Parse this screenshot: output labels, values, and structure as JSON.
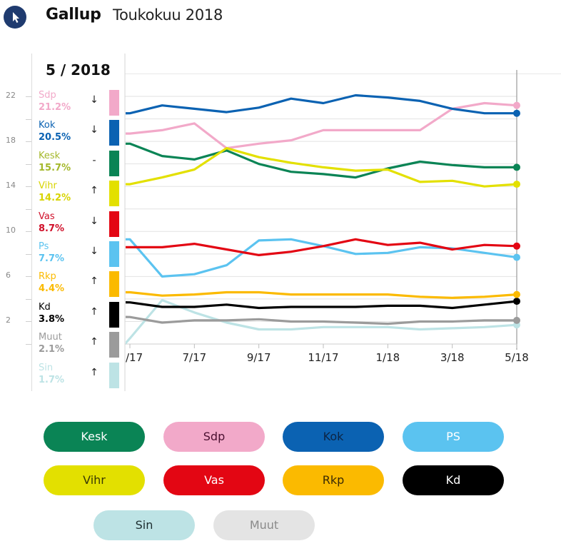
{
  "header": {
    "title": "Gallup",
    "subtitle": "Toukokuu 2018",
    "icon": "cursor-icon"
  },
  "panel": {
    "date_label": "5 / 2018",
    "y_ticks": [
      "22",
      "18",
      "14",
      "10",
      "6",
      "2"
    ],
    "parties": [
      {
        "name": "Sdp",
        "value": "21.2%",
        "arrow": "↓",
        "trend": "down",
        "color": "#f2a9c9",
        "label_color": "#f2a9c9"
      },
      {
        "name": "Kok",
        "value": "20.5%",
        "arrow": "↓",
        "trend": "down",
        "color": "#0b62b2",
        "label_color": "#0b62b2"
      },
      {
        "name": "Kesk",
        "value": "15.7%",
        "arrow": "-",
        "trend": "flat",
        "color": "#0a8455",
        "label_color": "#a4b82a"
      },
      {
        "name": "Vihr",
        "value": "14.2%",
        "arrow": "↑",
        "trend": "up",
        "color": "#e3e000",
        "label_color": "#d8d400"
      },
      {
        "name": "Vas",
        "value": "8.7%",
        "arrow": "↓",
        "trend": "down",
        "color": "#e30613",
        "label_color": "#d0102a"
      },
      {
        "name": "Ps",
        "value": "7.7%",
        "arrow": "↓",
        "trend": "down",
        "color": "#5bc3f0",
        "label_color": "#5bc3f0"
      },
      {
        "name": "Rkp",
        "value": "4.4%",
        "arrow": "↑",
        "trend": "up",
        "color": "#fbba00",
        "label_color": "#fbba00"
      },
      {
        "name": "Kd",
        "value": "3.8%",
        "arrow": "↑",
        "trend": "up",
        "color": "#000000",
        "label_color": "#000000"
      },
      {
        "name": "Muut",
        "value": "2.1%",
        "arrow": "↑",
        "trend": "up",
        "color": "#9b9b9b",
        "label_color": "#9b9b9b"
      },
      {
        "name": "Sin",
        "value": "1.7%",
        "arrow": "↑",
        "trend": "up",
        "color": "#bde3e5",
        "label_color": "#bde3e5"
      }
    ]
  },
  "chart_data": {
    "type": "line",
    "title": "Gallup Toukokuu 2018",
    "xlabel": "",
    "ylabel": "%",
    "x": [
      "5/17",
      "6/17",
      "7/17",
      "8/17",
      "9/17",
      "10/17",
      "11/17",
      "12/17",
      "1/18",
      "2/18",
      "3/18",
      "4/18",
      "5/18"
    ],
    "x_tick_labels": [
      "/17",
      "7/17",
      "9/17",
      "11/17",
      "1/18",
      "3/18",
      "5/18"
    ],
    "y_tick_labels": [
      "22",
      "18",
      "14",
      "10",
      "6",
      "2"
    ],
    "ylim": [
      0,
      24
    ],
    "grid": true,
    "series": [
      {
        "name": "Sin",
        "color": "#bde3e5",
        "values": [
          0.5,
          3.9,
          2.8,
          1.9,
          1.3,
          1.3,
          1.5,
          1.5,
          1.5,
          1.3,
          1.4,
          1.5,
          1.7
        ]
      },
      {
        "name": "Muut",
        "color": "#9b9b9b",
        "values": [
          2.4,
          1.9,
          2.1,
          2.1,
          2.2,
          2.0,
          2.0,
          1.9,
          1.8,
          2.0,
          2.0,
          2.1,
          2.1
        ]
      },
      {
        "name": "Kd",
        "color": "#000000",
        "values": [
          3.7,
          3.3,
          3.3,
          3.5,
          3.2,
          3.3,
          3.3,
          3.3,
          3.4,
          3.4,
          3.2,
          3.5,
          3.8
        ]
      },
      {
        "name": "Rkp",
        "color": "#fbba00",
        "values": [
          4.6,
          4.3,
          4.4,
          4.6,
          4.6,
          4.4,
          4.4,
          4.4,
          4.4,
          4.2,
          4.1,
          4.2,
          4.4
        ]
      },
      {
        "name": "Ps",
        "color": "#5bc3f0",
        "values": [
          9.3,
          6.0,
          6.2,
          7.0,
          9.2,
          9.3,
          8.7,
          8.0,
          8.1,
          8.6,
          8.5,
          8.1,
          7.7
        ]
      },
      {
        "name": "Vas",
        "color": "#e30613",
        "values": [
          8.6,
          8.6,
          8.9,
          8.4,
          7.9,
          8.2,
          8.7,
          9.3,
          8.8,
          9.0,
          8.4,
          8.8,
          8.7
        ]
      },
      {
        "name": "Sdp",
        "color": "#f2a9c9",
        "values": [
          18.7,
          19.0,
          19.6,
          17.4,
          17.8,
          18.1,
          19.0,
          19.0,
          19.0,
          19.0,
          20.9,
          21.4,
          21.2
        ]
      },
      {
        "name": "Kesk",
        "color": "#0a8455",
        "values": [
          17.8,
          16.7,
          16.4,
          17.2,
          16.0,
          15.3,
          15.1,
          14.8,
          15.6,
          16.2,
          15.9,
          15.7,
          15.7
        ]
      },
      {
        "name": "Vihr",
        "color": "#e3e000",
        "values": [
          14.2,
          14.8,
          15.5,
          17.4,
          16.6,
          16.1,
          15.7,
          15.4,
          15.5,
          14.4,
          14.5,
          14.0,
          14.2
        ]
      },
      {
        "name": "Kok",
        "color": "#0b62b2",
        "values": [
          20.5,
          21.2,
          20.9,
          20.6,
          21.0,
          21.8,
          21.4,
          22.1,
          21.9,
          21.6,
          20.9,
          20.5,
          20.5
        ]
      }
    ],
    "legend": "bottom"
  },
  "toggle_buttons": [
    {
      "label": "Kesk",
      "bg": "#0a8455",
      "fg": "#ffffff"
    },
    {
      "label": "Sdp",
      "bg": "#f2a9c9",
      "fg": "#4a1030"
    },
    {
      "label": "Kok",
      "bg": "#0b62b2",
      "fg": "#0c2545"
    },
    {
      "label": "PS",
      "bg": "#5bc3f0",
      "fg": "#ffffff"
    },
    {
      "label": "Vihr",
      "bg": "#e3e000",
      "fg": "#3a3a05"
    },
    {
      "label": "Vas",
      "bg": "#e30613",
      "fg": "#ffffff"
    },
    {
      "label": "Rkp",
      "bg": "#fbba00",
      "fg": "#3a2a05"
    },
    {
      "label": "Kd",
      "bg": "#000000",
      "fg": "#ffffff"
    },
    {
      "label": "Sin",
      "bg": "#bde3e5",
      "fg": "#1c2d2f"
    },
    {
      "label": "Muut",
      "bg": "#e4e4e4",
      "fg": "#8a8a8a"
    }
  ]
}
